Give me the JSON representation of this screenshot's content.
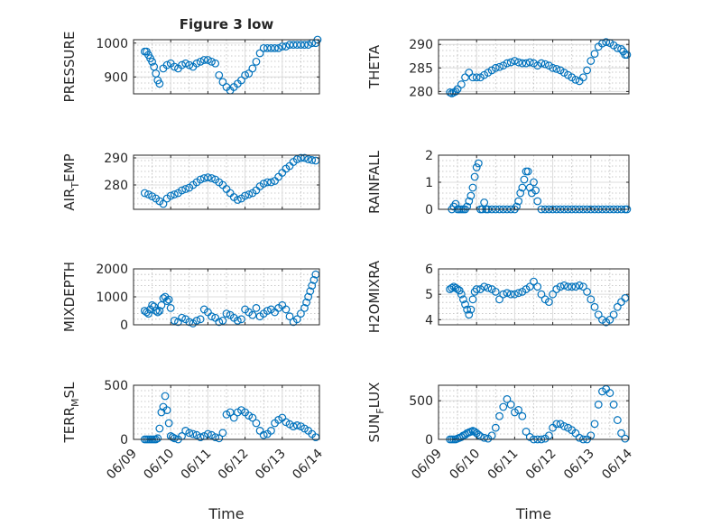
{
  "figure": {
    "title": "Figure 3 low"
  },
  "chart_data": [
    {
      "type": "scatter",
      "ylabel": "PRESSURE",
      "ylim": [
        850,
        1010
      ],
      "yticks": [
        900,
        1000
      ],
      "xlim": [
        0,
        5
      ],
      "grid": true,
      "show_xticks": false,
      "x": [
        0.3,
        0.35,
        0.4,
        0.45,
        0.5,
        0.55,
        0.6,
        0.65,
        0.7,
        0.8,
        0.9,
        1.0,
        1.1,
        1.2,
        1.3,
        1.4,
        1.5,
        1.6,
        1.7,
        1.8,
        1.9,
        2.0,
        2.1,
        2.2,
        2.3,
        2.4,
        2.5,
        2.6,
        2.7,
        2.8,
        2.9,
        3.0,
        3.1,
        3.2,
        3.3,
        3.4,
        3.5,
        3.6,
        3.7,
        3.8,
        3.9,
        4.0,
        4.1,
        4.2,
        4.3,
        4.4,
        4.5,
        4.6,
        4.7,
        4.8,
        4.9,
        4.95
      ],
      "y": [
        975,
        975,
        965,
        955,
        945,
        930,
        910,
        890,
        880,
        925,
        935,
        940,
        930,
        925,
        935,
        940,
        935,
        930,
        940,
        945,
        950,
        950,
        945,
        940,
        905,
        885,
        870,
        860,
        870,
        880,
        890,
        905,
        910,
        925,
        945,
        970,
        985,
        985,
        985,
        985,
        985,
        990,
        990,
        995,
        995,
        995,
        995,
        995,
        995,
        1000,
        1000,
        1010
      ]
    },
    {
      "type": "scatter",
      "ylabel": "THETA",
      "ylim": [
        279.5,
        291
      ],
      "yticks": [
        280,
        285,
        290
      ],
      "xlim": [
        0,
        5
      ],
      "grid": true,
      "show_xticks": false,
      "x": [
        0.3,
        0.35,
        0.4,
        0.45,
        0.5,
        0.6,
        0.7,
        0.8,
        0.9,
        1.0,
        1.1,
        1.2,
        1.3,
        1.4,
        1.5,
        1.6,
        1.7,
        1.8,
        1.9,
        2.0,
        2.1,
        2.2,
        2.3,
        2.4,
        2.5,
        2.6,
        2.7,
        2.8,
        2.9,
        3.0,
        3.1,
        3.2,
        3.3,
        3.4,
        3.5,
        3.6,
        3.7,
        3.8,
        3.9,
        4.0,
        4.1,
        4.2,
        4.3,
        4.4,
        4.5,
        4.6,
        4.7,
        4.8,
        4.85,
        4.9,
        4.95
      ],
      "y": [
        279.8,
        279.6,
        279.8,
        280.0,
        280.5,
        281.5,
        283,
        284,
        283,
        283,
        283,
        283.5,
        284,
        284.5,
        285,
        285.2,
        285.5,
        286,
        286.2,
        286.5,
        286.2,
        286,
        286,
        286.2,
        286,
        285.5,
        286,
        285.8,
        285.5,
        285,
        284.8,
        284.5,
        284,
        283.5,
        283,
        282.5,
        282.2,
        283,
        284.5,
        286.5,
        288,
        289.5,
        290.2,
        290.5,
        290.3,
        289.8,
        289.2,
        289,
        288.5,
        287.8,
        287.8
      ]
    },
    {
      "type": "scatter",
      "ylabel": "AIR_TEMP",
      "ylim": [
        271,
        291
      ],
      "yticks": [
        280,
        290
      ],
      "xlim": [
        0,
        5
      ],
      "grid": true,
      "show_xticks": false,
      "x": [
        0.3,
        0.4,
        0.5,
        0.6,
        0.7,
        0.8,
        0.9,
        1.0,
        1.1,
        1.2,
        1.3,
        1.4,
        1.5,
        1.6,
        1.7,
        1.8,
        1.9,
        2.0,
        2.1,
        2.2,
        2.3,
        2.4,
        2.5,
        2.6,
        2.7,
        2.8,
        2.9,
        3.0,
        3.1,
        3.2,
        3.3,
        3.4,
        3.5,
        3.6,
        3.7,
        3.8,
        3.9,
        4.0,
        4.1,
        4.2,
        4.3,
        4.4,
        4.5,
        4.6,
        4.7,
        4.8,
        4.9
      ],
      "y": [
        277,
        276.5,
        275.8,
        275,
        274,
        273,
        275,
        276,
        276.5,
        277,
        278,
        278.5,
        279,
        280,
        281,
        282,
        282.5,
        282.8,
        282.5,
        282,
        281,
        280,
        278.5,
        277,
        275.5,
        274.5,
        275,
        276,
        276.5,
        277,
        278,
        279.5,
        280.5,
        281,
        281,
        281.5,
        283,
        284.5,
        286,
        287,
        288.5,
        289.5,
        290,
        290,
        289.5,
        289.2,
        289
      ]
    },
    {
      "type": "scatter",
      "ylabel": "RAINFALL",
      "ylim": [
        0,
        2
      ],
      "yticks": [
        0,
        1,
        2
      ],
      "xlim": [
        0,
        5
      ],
      "grid": true,
      "show_xticks": false,
      "x": [
        0.35,
        0.4,
        0.45,
        0.5,
        0.55,
        0.6,
        0.65,
        0.7,
        0.75,
        0.8,
        0.85,
        0.9,
        0.95,
        1.0,
        1.05,
        1.1,
        1.15,
        1.2,
        1.25,
        1.3,
        1.4,
        1.5,
        1.6,
        1.7,
        1.8,
        1.9,
        2.0,
        2.05,
        2.1,
        2.15,
        2.2,
        2.25,
        2.3,
        2.35,
        2.4,
        2.45,
        2.5,
        2.55,
        2.6,
        2.7,
        2.8,
        2.9,
        3.0,
        3.1,
        3.2,
        3.3,
        3.4,
        3.5,
        3.6,
        3.7,
        3.8,
        3.9,
        4.0,
        4.1,
        4.2,
        4.3,
        4.4,
        4.5,
        4.6,
        4.7,
        4.8,
        4.9,
        4.95
      ],
      "y": [
        0,
        0.1,
        0.2,
        0,
        0,
        0,
        0,
        0,
        0.1,
        0.3,
        0.5,
        0.8,
        1.2,
        1.55,
        1.7,
        0,
        0,
        0.25,
        0,
        0,
        0,
        0,
        0,
        0,
        0,
        0,
        0,
        0.1,
        0.3,
        0.6,
        0.8,
        1.1,
        1.4,
        1.4,
        0.8,
        0.6,
        1.0,
        0.7,
        0.3,
        0,
        0,
        0,
        0,
        0,
        0,
        0,
        0,
        0,
        0,
        0,
        0,
        0,
        0,
        0,
        0,
        0,
        0,
        0,
        0,
        0,
        0,
        0,
        0
      ]
    },
    {
      "type": "scatter",
      "ylabel": "MIXDEPTH",
      "ylim": [
        0,
        2000
      ],
      "yticks": [
        0,
        1000,
        2000
      ],
      "xlim": [
        0,
        5
      ],
      "grid": true,
      "show_xticks": false,
      "x": [
        0.3,
        0.35,
        0.4,
        0.45,
        0.5,
        0.55,
        0.6,
        0.65,
        0.7,
        0.75,
        0.8,
        0.85,
        0.9,
        0.95,
        1.0,
        1.1,
        1.2,
        1.3,
        1.4,
        1.5,
        1.6,
        1.7,
        1.8,
        1.9,
        2.0,
        2.1,
        2.2,
        2.3,
        2.4,
        2.5,
        2.6,
        2.7,
        2.8,
        2.9,
        3.0,
        3.1,
        3.2,
        3.3,
        3.4,
        3.5,
        3.6,
        3.7,
        3.8,
        3.9,
        4.0,
        4.1,
        4.2,
        4.3,
        4.4,
        4.5,
        4.6,
        4.65,
        4.7,
        4.75,
        4.8,
        4.85,
        4.9
      ],
      "y": [
        500,
        450,
        400,
        550,
        700,
        650,
        500,
        450,
        500,
        700,
        950,
        1000,
        850,
        900,
        600,
        150,
        100,
        250,
        200,
        100,
        50,
        150,
        200,
        550,
        450,
        300,
        250,
        100,
        150,
        400,
        350,
        250,
        150,
        200,
        550,
        450,
        350,
        600,
        300,
        400,
        500,
        550,
        450,
        600,
        700,
        550,
        300,
        100,
        200,
        400,
        600,
        800,
        1000,
        1200,
        1400,
        1600,
        1800
      ]
    },
    {
      "type": "scatter",
      "ylabel": "H2OMIXRA",
      "ylim": [
        3.8,
        6
      ],
      "yticks": [
        4,
        5,
        6
      ],
      "xlim": [
        0,
        5
      ],
      "grid": true,
      "show_xticks": false,
      "x": [
        0.3,
        0.35,
        0.4,
        0.45,
        0.5,
        0.55,
        0.6,
        0.65,
        0.7,
        0.75,
        0.8,
        0.85,
        0.9,
        0.95,
        1.0,
        1.1,
        1.2,
        1.3,
        1.4,
        1.5,
        1.6,
        1.7,
        1.8,
        1.9,
        2.0,
        2.1,
        2.2,
        2.3,
        2.4,
        2.5,
        2.6,
        2.7,
        2.8,
        2.9,
        3.0,
        3.1,
        3.2,
        3.3,
        3.4,
        3.5,
        3.6,
        3.7,
        3.8,
        3.9,
        4.0,
        4.1,
        4.2,
        4.3,
        4.4,
        4.5,
        4.6,
        4.7,
        4.8,
        4.9
      ],
      "y": [
        5.2,
        5.25,
        5.3,
        5.25,
        5.2,
        5.15,
        5.0,
        4.8,
        4.6,
        4.4,
        4.2,
        4.4,
        4.8,
        5.1,
        5.2,
        5.2,
        5.3,
        5.25,
        5.2,
        5.1,
        4.8,
        5.0,
        5.05,
        5.0,
        5.0,
        5.05,
        5.1,
        5.2,
        5.3,
        5.5,
        5.3,
        5.0,
        4.8,
        4.7,
        5.0,
        5.2,
        5.3,
        5.35,
        5.3,
        5.3,
        5.3,
        5.35,
        5.3,
        5.1,
        4.8,
        4.5,
        4.2,
        4.0,
        3.9,
        4.0,
        4.2,
        4.5,
        4.7,
        4.85
      ]
    },
    {
      "type": "scatter",
      "ylabel": "TERR_MSL",
      "ylim": [
        0,
        500
      ],
      "yticks": [
        0,
        500
      ],
      "xlim": [
        0,
        5
      ],
      "xlabel": "Time",
      "xticks": [
        "06/09",
        "06/10",
        "06/11",
        "06/12",
        "06/13",
        "06/14"
      ],
      "grid": true,
      "show_xticks": true,
      "x": [
        0.3,
        0.35,
        0.4,
        0.45,
        0.5,
        0.55,
        0.6,
        0.65,
        0.7,
        0.75,
        0.8,
        0.85,
        0.9,
        0.95,
        1.0,
        1.05,
        1.1,
        1.2,
        1.3,
        1.4,
        1.5,
        1.6,
        1.7,
        1.8,
        1.9,
        2.0,
        2.1,
        2.2,
        2.3,
        2.4,
        2.5,
        2.6,
        2.7,
        2.8,
        2.9,
        3.0,
        3.1,
        3.2,
        3.3,
        3.4,
        3.5,
        3.6,
        3.7,
        3.8,
        3.9,
        4.0,
        4.1,
        4.2,
        4.3,
        4.4,
        4.5,
        4.6,
        4.7,
        4.8,
        4.9
      ],
      "y": [
        0,
        0,
        0,
        0,
        0,
        0,
        0,
        10,
        100,
        250,
        300,
        400,
        270,
        150,
        30,
        20,
        10,
        0,
        30,
        80,
        60,
        50,
        40,
        20,
        30,
        50,
        40,
        20,
        10,
        60,
        230,
        250,
        200,
        250,
        270,
        250,
        220,
        200,
        150,
        80,
        40,
        50,
        80,
        150,
        180,
        200,
        160,
        140,
        120,
        130,
        120,
        100,
        80,
        50,
        20
      ]
    },
    {
      "type": "scatter",
      "ylabel": "SUN_FLUX",
      "ylim": [
        0,
        700
      ],
      "yticks": [
        0,
        500
      ],
      "xlim": [
        0,
        5
      ],
      "xlabel": "Time",
      "xticks": [
        "06/09",
        "06/10",
        "06/11",
        "06/12",
        "06/13",
        "06/14"
      ],
      "grid": true,
      "show_xticks": true,
      "x": [
        0.3,
        0.35,
        0.4,
        0.45,
        0.5,
        0.55,
        0.6,
        0.65,
        0.7,
        0.75,
        0.8,
        0.85,
        0.9,
        0.95,
        1.0,
        1.05,
        1.1,
        1.2,
        1.3,
        1.4,
        1.5,
        1.6,
        1.7,
        1.8,
        1.9,
        2.0,
        2.1,
        2.2,
        2.3,
        2.4,
        2.5,
        2.6,
        2.7,
        2.8,
        2.9,
        3.0,
        3.1,
        3.2,
        3.3,
        3.4,
        3.5,
        3.6,
        3.7,
        3.8,
        3.9,
        4.0,
        4.1,
        4.2,
        4.3,
        4.4,
        4.5,
        4.6,
        4.7,
        4.8,
        4.9
      ],
      "y": [
        0,
        0,
        0,
        0,
        10,
        20,
        30,
        50,
        60,
        80,
        90,
        100,
        110,
        100,
        80,
        60,
        40,
        20,
        10,
        50,
        150,
        300,
        420,
        520,
        450,
        350,
        380,
        300,
        100,
        30,
        0,
        0,
        0,
        10,
        50,
        150,
        200,
        200,
        170,
        150,
        120,
        80,
        20,
        0,
        0,
        50,
        200,
        450,
        620,
        650,
        600,
        450,
        250,
        80,
        10
      ]
    }
  ]
}
